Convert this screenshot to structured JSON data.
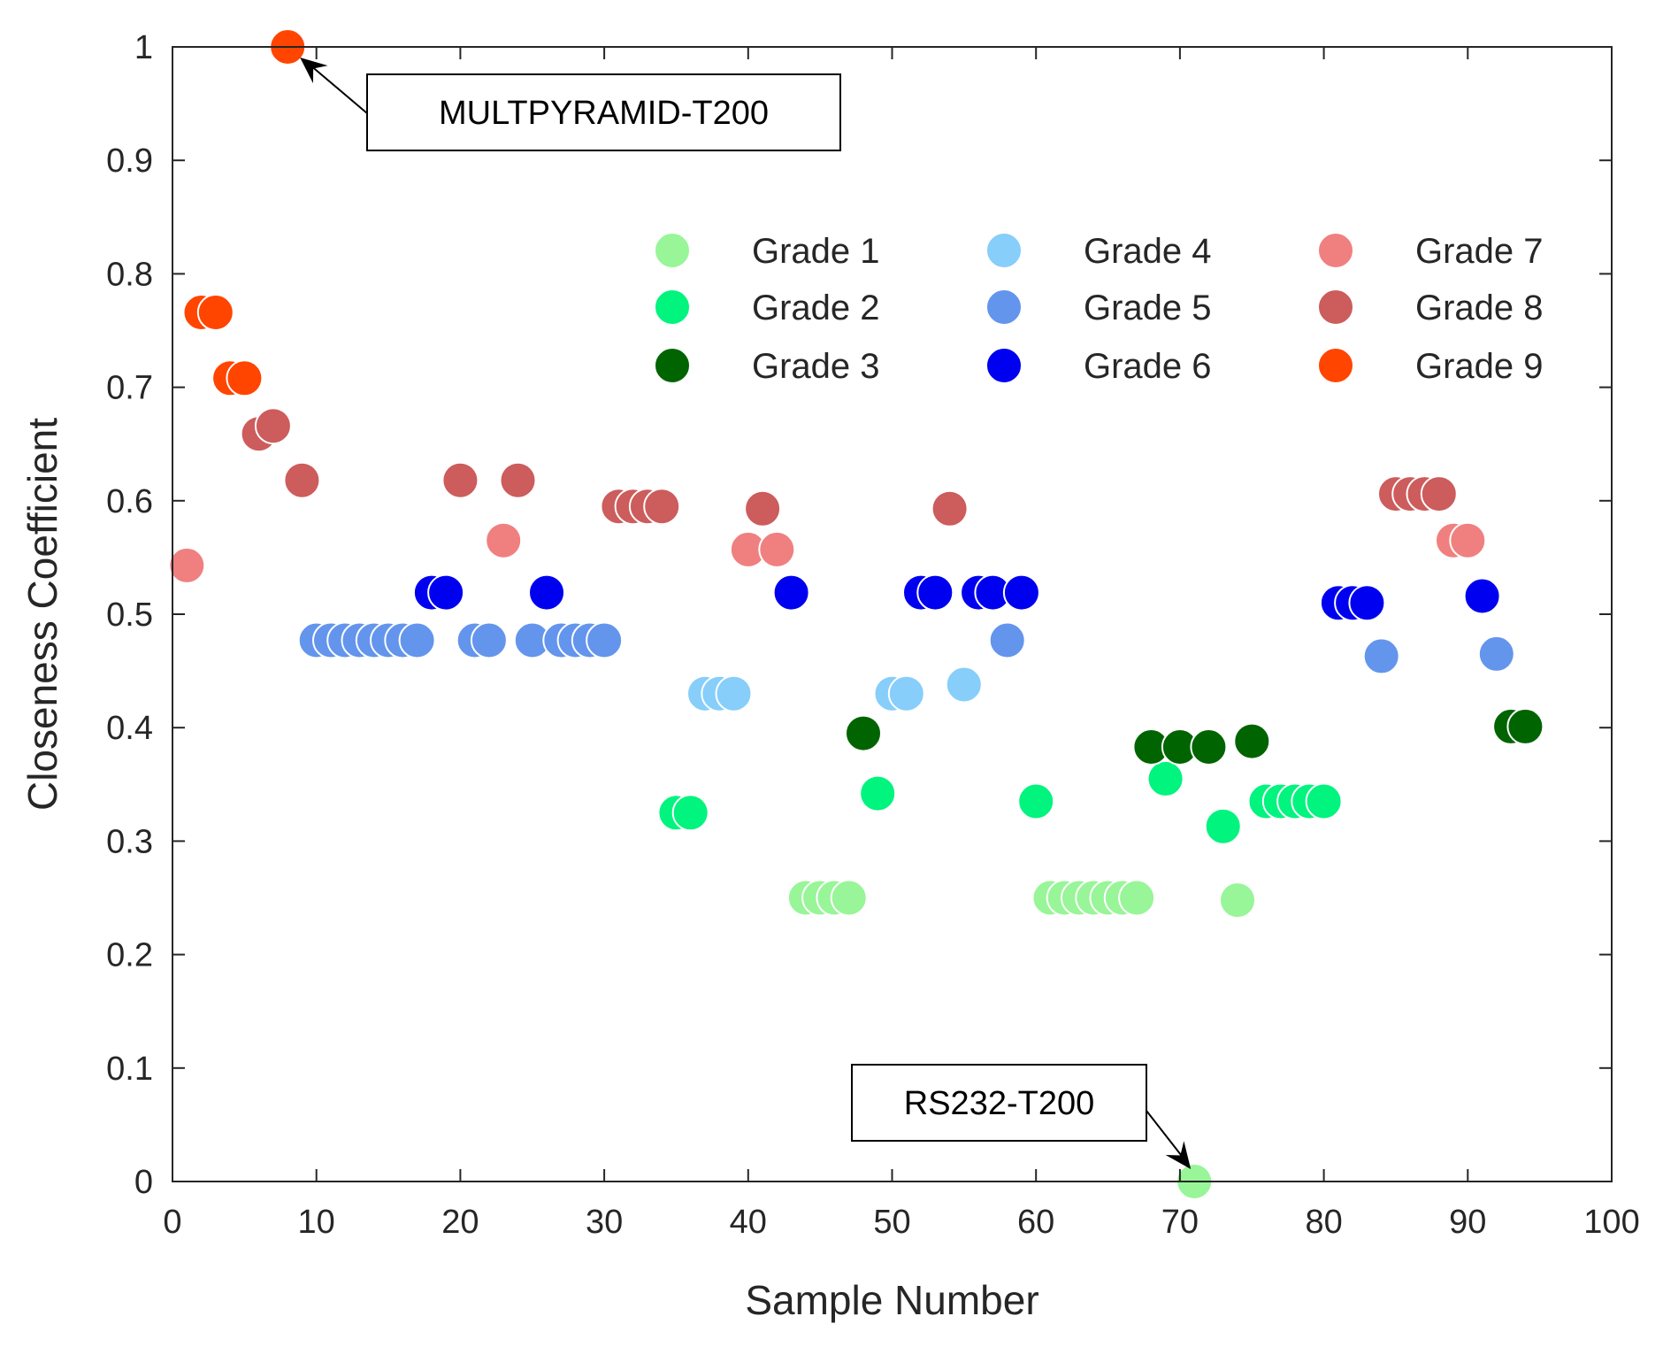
{
  "chart_data": {
    "type": "scatter",
    "title": "",
    "xlabel": "Sample Number",
    "ylabel": "Closeness Coefficient",
    "xlim": [
      0,
      100
    ],
    "ylim": [
      0,
      1
    ],
    "xticks": [
      0,
      10,
      20,
      30,
      40,
      50,
      60,
      70,
      80,
      90,
      100
    ],
    "yticks": [
      0,
      0.1,
      0.2,
      0.3,
      0.4,
      0.5,
      0.6,
      0.7,
      0.8,
      0.9,
      1
    ],
    "xtick_labels": [
      "0",
      "10",
      "20",
      "30",
      "40",
      "50",
      "60",
      "70",
      "80",
      "90",
      "100"
    ],
    "ytick_labels": [
      "0",
      "0.1",
      "0.2",
      "0.3",
      "0.4",
      "0.5",
      "0.6",
      "0.7",
      "0.8",
      "0.9",
      "1"
    ],
    "grid": false,
    "legend_position": "top-right",
    "legend_columns": 3,
    "series": [
      {
        "name": "Grade 1",
        "color": "#98F598",
        "points": [
          [
            44,
            0.25
          ],
          [
            45,
            0.25
          ],
          [
            46,
            0.25
          ],
          [
            47,
            0.25
          ],
          [
            61,
            0.25
          ],
          [
            62,
            0.25
          ],
          [
            63,
            0.25
          ],
          [
            64,
            0.25
          ],
          [
            65,
            0.25
          ],
          [
            66,
            0.25
          ],
          [
            67,
            0.25
          ],
          [
            71,
            0.0
          ],
          [
            74,
            0.248
          ]
        ]
      },
      {
        "name": "Grade 2",
        "color": "#00F47E",
        "points": [
          [
            35,
            0.325
          ],
          [
            36,
            0.325
          ],
          [
            49,
            0.342
          ],
          [
            60,
            0.335
          ],
          [
            69,
            0.355
          ],
          [
            73,
            0.313
          ],
          [
            76,
            0.335
          ],
          [
            77,
            0.335
          ],
          [
            78,
            0.335
          ],
          [
            79,
            0.335
          ],
          [
            80,
            0.335
          ]
        ]
      },
      {
        "name": "Grade 3",
        "color": "#006400",
        "points": [
          [
            48,
            0.395
          ],
          [
            68,
            0.383
          ],
          [
            70,
            0.383
          ],
          [
            72,
            0.383
          ],
          [
            75,
            0.388
          ],
          [
            93,
            0.401
          ],
          [
            94,
            0.401
          ]
        ]
      },
      {
        "name": "Grade 4",
        "color": "#87CEFA",
        "points": [
          [
            37,
            0.43
          ],
          [
            38,
            0.43
          ],
          [
            39,
            0.43
          ],
          [
            50,
            0.43
          ],
          [
            51,
            0.43
          ],
          [
            55,
            0.438
          ]
        ]
      },
      {
        "name": "Grade 5",
        "color": "#6495ED",
        "points": [
          [
            10,
            0.477
          ],
          [
            11,
            0.477
          ],
          [
            12,
            0.477
          ],
          [
            13,
            0.477
          ],
          [
            14,
            0.477
          ],
          [
            15,
            0.477
          ],
          [
            16,
            0.477
          ],
          [
            17,
            0.477
          ],
          [
            21,
            0.477
          ],
          [
            22,
            0.477
          ],
          [
            25,
            0.477
          ],
          [
            27,
            0.477
          ],
          [
            28,
            0.477
          ],
          [
            29,
            0.477
          ],
          [
            30,
            0.477
          ],
          [
            58,
            0.477
          ],
          [
            84,
            0.463
          ],
          [
            92,
            0.465
          ]
        ]
      },
      {
        "name": "Grade 6",
        "color": "#0000F0",
        "points": [
          [
            18,
            0.519
          ],
          [
            19,
            0.519
          ],
          [
            26,
            0.519
          ],
          [
            43,
            0.519
          ],
          [
            52,
            0.519
          ],
          [
            53,
            0.519
          ],
          [
            56,
            0.519
          ],
          [
            57,
            0.519
          ],
          [
            59,
            0.519
          ],
          [
            81,
            0.51
          ],
          [
            82,
            0.51
          ],
          [
            83,
            0.51
          ],
          [
            91,
            0.516
          ]
        ]
      },
      {
        "name": "Grade 7",
        "color": "#F08080",
        "points": [
          [
            1,
            0.543
          ],
          [
            23,
            0.565
          ],
          [
            40,
            0.557
          ],
          [
            42,
            0.557
          ],
          [
            89,
            0.565
          ],
          [
            90,
            0.565
          ]
        ]
      },
      {
        "name": "Grade 8",
        "color": "#CD5C5C",
        "points": [
          [
            6,
            0.659
          ],
          [
            7,
            0.666
          ],
          [
            9,
            0.618
          ],
          [
            20,
            0.618
          ],
          [
            24,
            0.618
          ],
          [
            31,
            0.595
          ],
          [
            32,
            0.595
          ],
          [
            33,
            0.595
          ],
          [
            34,
            0.595
          ],
          [
            41,
            0.593
          ],
          [
            54,
            0.593
          ],
          [
            85,
            0.606
          ],
          [
            86,
            0.606
          ],
          [
            87,
            0.606
          ],
          [
            88,
            0.606
          ]
        ]
      },
      {
        "name": "Grade 9",
        "color": "#FF4500",
        "points": [
          [
            2,
            0.766
          ],
          [
            3,
            0.766
          ],
          [
            4,
            0.708
          ],
          [
            5,
            0.708
          ],
          [
            8,
            1.0
          ]
        ]
      }
    ],
    "annotations": [
      {
        "text": "MULTPYRAMID-T200",
        "target": [
          8,
          1.0
        ]
      },
      {
        "text": "RS232-T200",
        "target": [
          71,
          0.0
        ]
      }
    ]
  }
}
